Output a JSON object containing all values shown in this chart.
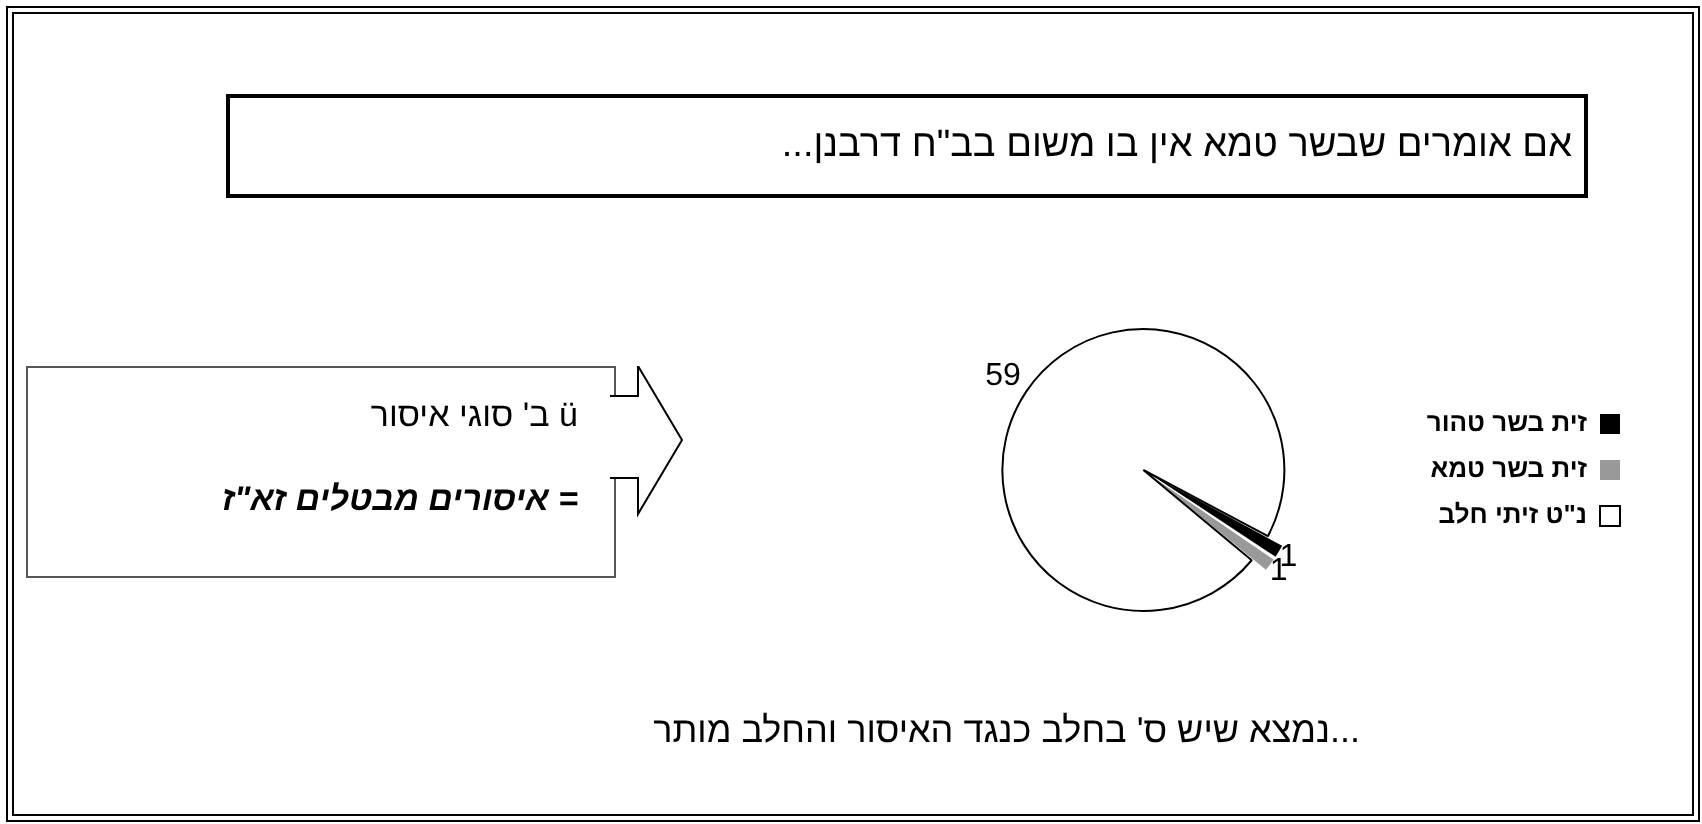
{
  "chart_data": {
    "type": "pie",
    "title": "אם אומרים שבשר טמא אין בו משום בב\"ח דרבנן...",
    "categories": [
      "זית בשר טהור",
      "זית בשר טמא",
      "נ\"ט זיתי חלב"
    ],
    "values": [
      1,
      1,
      59
    ],
    "colors": [
      "#000000",
      "#999999",
      "#ffffff"
    ],
    "data_labels": true,
    "legend": "right",
    "annotations": [
      "ü ב' סוגי איסור",
      "= איסורים מבטלים זא\"ז",
      "...נמצא שיש ס' בחלב כנגד האיסור  והחלב מותר"
    ]
  }
}
